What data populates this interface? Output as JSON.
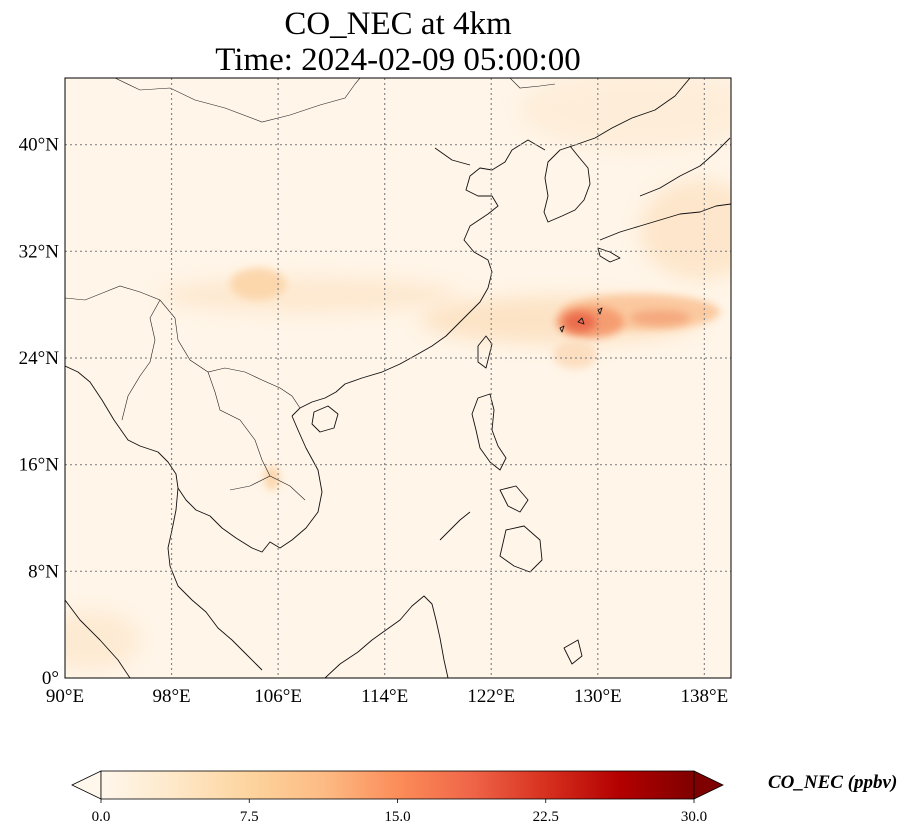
{
  "figure": {
    "title_line1": "CO_NEC at 4km",
    "title_line2": "Time: 2024-02-09 05:00:00"
  },
  "map": {
    "variable": "CO_NEC",
    "level": "4km",
    "time": "2024-02-09 05:00:00",
    "lon_range": [
      90,
      140
    ],
    "lat_range": [
      0,
      45
    ],
    "gridlines": true,
    "lon_ticks": [
      {
        "value": 90,
        "label": "90°E"
      },
      {
        "value": 98,
        "label": "98°E"
      },
      {
        "value": 106,
        "label": "106°E"
      },
      {
        "value": 114,
        "label": "114°E"
      },
      {
        "value": 122,
        "label": "122°E"
      },
      {
        "value": 130,
        "label": "130°E"
      },
      {
        "value": 138,
        "label": "138°E"
      }
    ],
    "lat_ticks": [
      {
        "value": 0,
        "label": "0°"
      },
      {
        "value": 8,
        "label": "8°N"
      },
      {
        "value": 16,
        "label": "16°N"
      },
      {
        "value": 24,
        "label": "24°N"
      },
      {
        "value": 32,
        "label": "32°N"
      },
      {
        "value": 40,
        "label": "40°N"
      }
    ],
    "colors": {
      "background": "#fff5e8",
      "coastline": "#111111",
      "gridline": "#888888"
    },
    "plumes": [
      {
        "lon": 104.5,
        "lat": 29.5,
        "value": 7.5
      },
      {
        "lon": 128.5,
        "lat": 26.7,
        "value": 20
      },
      {
        "lon": 130.5,
        "lat": 27.5,
        "value": 16
      },
      {
        "lon": 134,
        "lat": 27.5,
        "value": 11
      },
      {
        "lon": 137,
        "lat": 34,
        "value": 4
      },
      {
        "lon": 105,
        "lat": 15,
        "value": 5
      }
    ]
  },
  "colorbar": {
    "min": 0.0,
    "max": 30.0,
    "ticks": [
      "0.0",
      "7.5",
      "15.0",
      "22.5",
      "30.0"
    ],
    "label": "CO_NEC (ppbv)",
    "extend": "both",
    "cmap_stops": [
      "#fff7ec",
      "#fee8c8",
      "#fdd49e",
      "#fdbb84",
      "#fc8d59",
      "#ef6548",
      "#d7301f",
      "#b30000",
      "#7f0000"
    ]
  }
}
